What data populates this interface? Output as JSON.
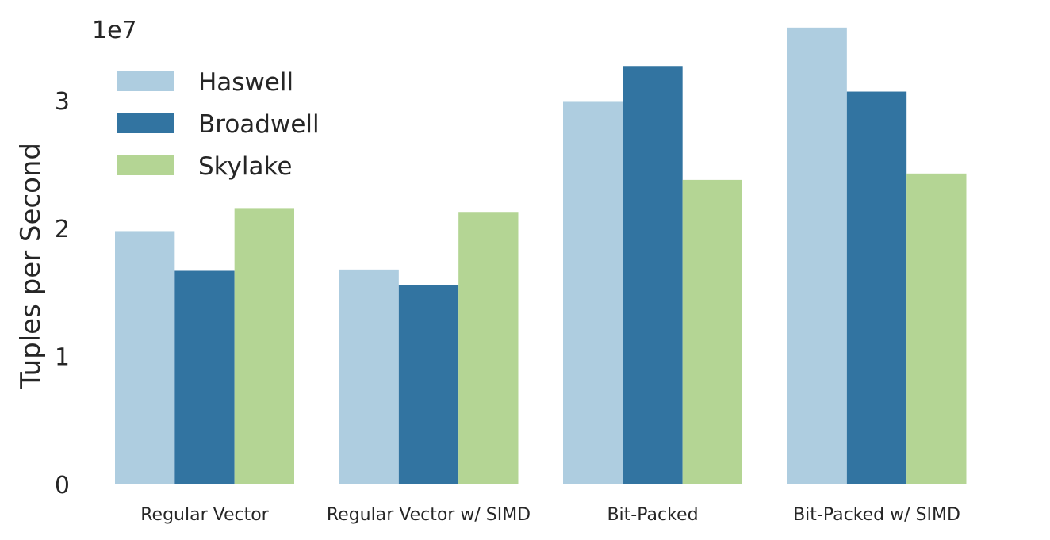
{
  "chart_data": {
    "type": "bar",
    "title": "",
    "xlabel": "",
    "ylabel": "Tuples per Second",
    "y_scale_label": "1e7",
    "ylim": [
      0,
      36000000
    ],
    "yticks": [
      0,
      10000000,
      20000000,
      30000000
    ],
    "ytick_labels": [
      "0",
      "1",
      "2",
      "3"
    ],
    "categories": [
      "Regular Vector",
      "Regular Vector w/ SIMD",
      "Bit-Packed",
      "Bit-Packed w/ SIMD"
    ],
    "series": [
      {
        "name": "Haswell",
        "color": "#aecde0",
        "values": [
          19800000,
          16800000,
          29900000,
          35700000
        ]
      },
      {
        "name": "Broadwell",
        "color": "#3274a1",
        "values": [
          16700000,
          15600000,
          32700000,
          30700000
        ]
      },
      {
        "name": "Skylake",
        "color": "#b4d594",
        "values": [
          21600000,
          21300000,
          23800000,
          24300000
        ]
      }
    ],
    "grid": false,
    "legend_position": "top-left"
  }
}
